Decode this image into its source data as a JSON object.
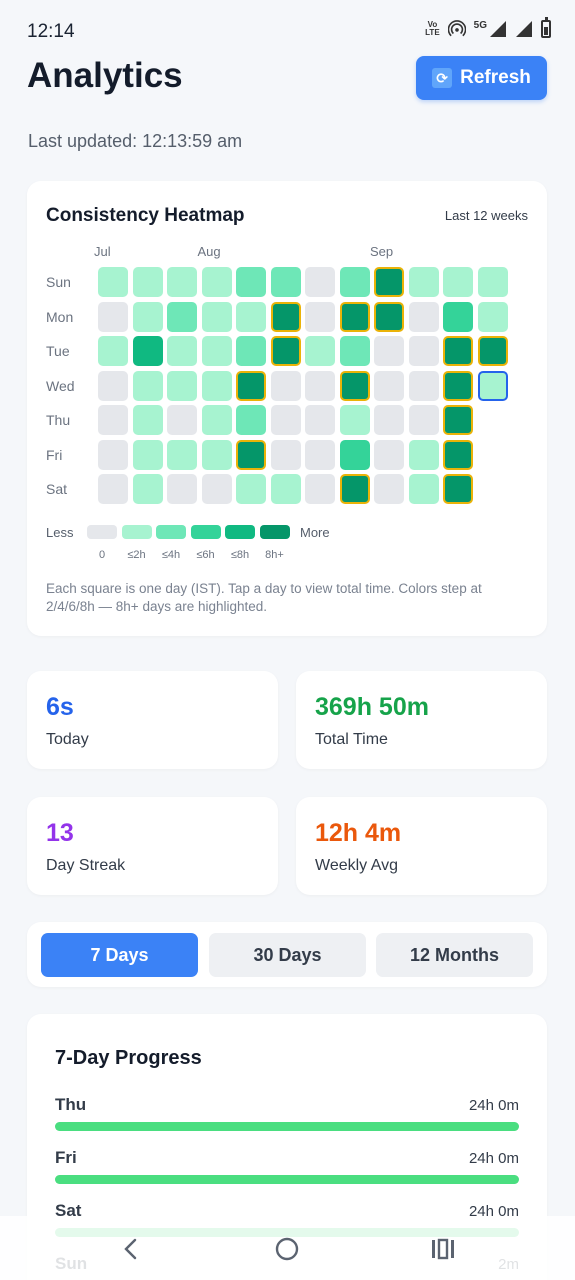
{
  "status_bar": {
    "time": "12:14",
    "network_top": "Vo",
    "network_bottom": "LTE",
    "five_g": "5G"
  },
  "header": {
    "title": "Analytics",
    "refresh_label": "Refresh",
    "last_updated": "Last updated: 12:13:59 am"
  },
  "heatmap": {
    "title": "Consistency Heatmap",
    "range": "Last 12 weeks",
    "months": [
      {
        "label": "Jul",
        "col": 0
      },
      {
        "label": "Aug",
        "col": 3
      },
      {
        "label": "Sep",
        "col": 8
      }
    ],
    "days": [
      "Sun",
      "Mon",
      "Tue",
      "Wed",
      "Thu",
      "Fri",
      "Sat"
    ],
    "grid": [
      [
        1,
        1,
        1,
        1,
        2,
        2,
        0,
        2,
        5,
        1,
        1,
        1
      ],
      [
        0,
        1,
        2,
        1,
        1,
        5,
        0,
        5,
        5,
        0,
        3,
        1
      ],
      [
        1,
        4,
        1,
        1,
        2,
        5,
        1,
        2,
        0,
        0,
        5,
        5
      ],
      [
        0,
        1,
        1,
        1,
        5,
        0,
        0,
        5,
        0,
        0,
        5,
        1
      ],
      [
        0,
        1,
        0,
        1,
        2,
        0,
        0,
        1,
        0,
        0,
        5,
        null
      ],
      [
        0,
        1,
        1,
        1,
        5,
        0,
        0,
        3,
        0,
        1,
        5,
        null
      ],
      [
        0,
        1,
        0,
        0,
        1,
        1,
        0,
        5,
        0,
        1,
        5,
        null
      ]
    ],
    "today_cell": {
      "row": 3,
      "col": 11
    },
    "legend": {
      "less": "Less",
      "more": "More",
      "ticks": [
        "0",
        "≤2h",
        "≤4h",
        "≤6h",
        "≤8h",
        "8h+"
      ]
    },
    "note": "Each square is one day (IST). Tap a day to view total time. Colors step at 2/4/6/8h — 8h+ days are highlighted.",
    "colors": [
      "#e5e7eb",
      "#a7f3d0",
      "#6ee7b7",
      "#34d399",
      "#10b981",
      "#059669"
    ],
    "highlight_color": "#eab308"
  },
  "stats": [
    {
      "value": "6s",
      "label": "Today",
      "color": "#2563eb"
    },
    {
      "value": "369h 50m",
      "label": "Total Time",
      "color": "#16a34a"
    },
    {
      "value": "13",
      "label": "Day Streak",
      "color": "#9333ea"
    },
    {
      "value": "12h 4m",
      "label": "Weekly Avg",
      "color": "#ea580c"
    }
  ],
  "tabs": [
    {
      "label": "7 Days",
      "active": true
    },
    {
      "label": "30 Days",
      "active": false
    },
    {
      "label": "12 Months",
      "active": false
    }
  ],
  "progress": {
    "title": "7-Day Progress",
    "items": [
      {
        "day": "Thu",
        "value": "24h 0m",
        "fraction": 1.0
      },
      {
        "day": "Fri",
        "value": "24h 0m",
        "fraction": 1.0
      },
      {
        "day": "Sat",
        "value": "24h 0m",
        "fraction": 1.0
      },
      {
        "day": "Sun",
        "value": "2m",
        "fraction": 0.0
      }
    ]
  },
  "nav": {
    "back": "back-icon",
    "home": "home-icon",
    "recents": "recents-icon"
  }
}
